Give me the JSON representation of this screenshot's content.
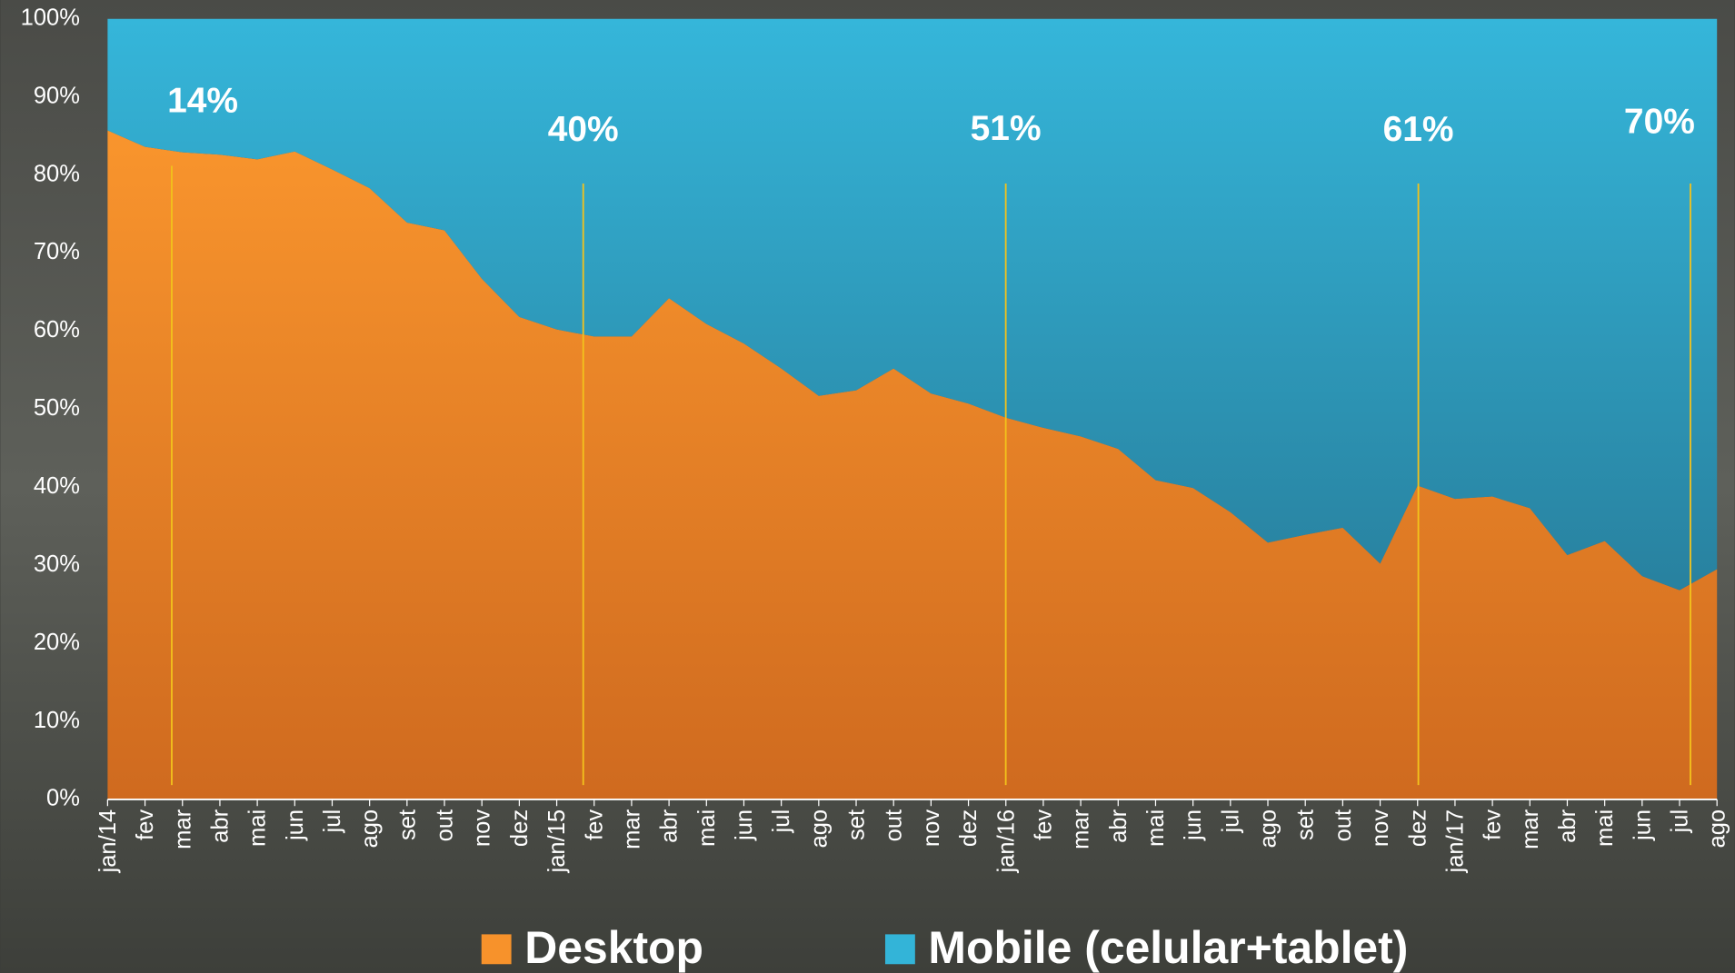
{
  "chart_data": {
    "type": "stacked_area",
    "categories": [
      "jan/14",
      "fev",
      "mar",
      "abr",
      "mai",
      "jun",
      "jul",
      "ago",
      "set",
      "out",
      "nov",
      "dez",
      "jan/15",
      "fev",
      "mar",
      "abr",
      "mai",
      "jun",
      "jul",
      "ago",
      "set",
      "out",
      "nov",
      "dez",
      "jan/16",
      "fev",
      "mar",
      "abr",
      "mai",
      "jun",
      "jul",
      "ago",
      "set",
      "out",
      "nov",
      "dez",
      "jan/17",
      "fev",
      "mar",
      "abr",
      "mai",
      "jun",
      "jul",
      "ago"
    ],
    "series": [
      {
        "name": "Desktop",
        "color": "#f7922b",
        "values": [
          85.7,
          83.6,
          82.9,
          82.6,
          82,
          83,
          80.7,
          78.3,
          73.9,
          72.9,
          66.7,
          61.8,
          60.2,
          59.3,
          59.3,
          64.2,
          60.9,
          58.4,
          55.2,
          51.7,
          52.4,
          55.2,
          52,
          50.7,
          48.9,
          47.6,
          46.5,
          44.9,
          40.9,
          39.9,
          36.8,
          32.9,
          33.9,
          34.8,
          30.2,
          40.2,
          38.5,
          38.8,
          37.3,
          31.3,
          33.1,
          28.6,
          26.8,
          29.5
        ]
      },
      {
        "name": "Mobile (celular+tablet)",
        "color": "#33b4d8",
        "values": [
          14.3,
          16.4,
          17.1,
          17.4,
          18,
          17,
          19.3,
          21.7,
          26.1,
          27.1,
          33.3,
          38.2,
          39.8,
          40.7,
          40.7,
          35.8,
          39.1,
          41.6,
          44.8,
          48.3,
          47.6,
          44.8,
          48,
          49.3,
          51.1,
          52.4,
          53.5,
          55.1,
          59.1,
          60.1,
          63.2,
          67.1,
          66.1,
          65.2,
          69.8,
          59.8,
          61.5,
          61.2,
          62.7,
          68.7,
          66.9,
          71.4,
          73.2,
          70.5
        ]
      }
    ],
    "ylim": [
      0,
      100
    ],
    "yticks": [
      {
        "value": 0,
        "label": "0%"
      },
      {
        "value": 10,
        "label": "10%"
      },
      {
        "value": 20,
        "label": "20%"
      },
      {
        "value": 30,
        "label": "30%"
      },
      {
        "value": 40,
        "label": "40%"
      },
      {
        "value": 50,
        "label": "50%"
      },
      {
        "value": 60,
        "label": "60%"
      },
      {
        "value": 70,
        "label": "70%"
      },
      {
        "value": 80,
        "label": "80%"
      },
      {
        "value": 90,
        "label": "90%"
      },
      {
        "value": 100,
        "label": "100%"
      }
    ],
    "annotations": [
      "14%",
      "40%",
      "51%",
      "61%",
      "70%"
    ],
    "grid": false
  }
}
